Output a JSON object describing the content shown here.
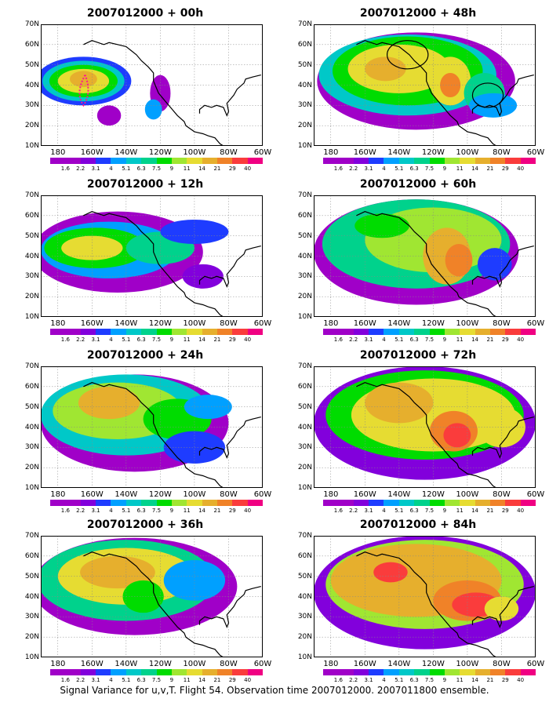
{
  "panels": [
    {
      "title": "2007012000 + 00h"
    },
    {
      "title": "2007012000 + 48h"
    },
    {
      "title": "2007012000 + 12h"
    },
    {
      "title": "2007012000 + 60h"
    },
    {
      "title": "2007012000 + 24h"
    },
    {
      "title": "2007012000 + 72h"
    },
    {
      "title": "2007012000 + 36h"
    },
    {
      "title": "2007012000 + 84h"
    }
  ],
  "lat_labels": [
    "70N",
    "60N",
    "50N",
    "40N",
    "30N",
    "20N",
    "10N"
  ],
  "lon_labels": [
    "180",
    "160W",
    "140W",
    "120W",
    "100W",
    "80W",
    "60W"
  ],
  "colorbar": {
    "labels": [
      "1.6",
      "2.2",
      "3.1",
      "4",
      "5.1",
      "6.3",
      "7.5",
      "9",
      "11",
      "14",
      "21",
      "29",
      "40"
    ],
    "colors": [
      "#a000c8",
      "#8200dc",
      "#1e3cff",
      "#00a0ff",
      "#00c8c8",
      "#00d28c",
      "#00dc00",
      "#a0e632",
      "#e6dc32",
      "#e6af2d",
      "#f08228",
      "#fa3c3c",
      "#f00082"
    ]
  },
  "caption": "Signal Variance for u,v,T. Flight 54. Observation time 2007012000. 2007011800 ensemble."
}
